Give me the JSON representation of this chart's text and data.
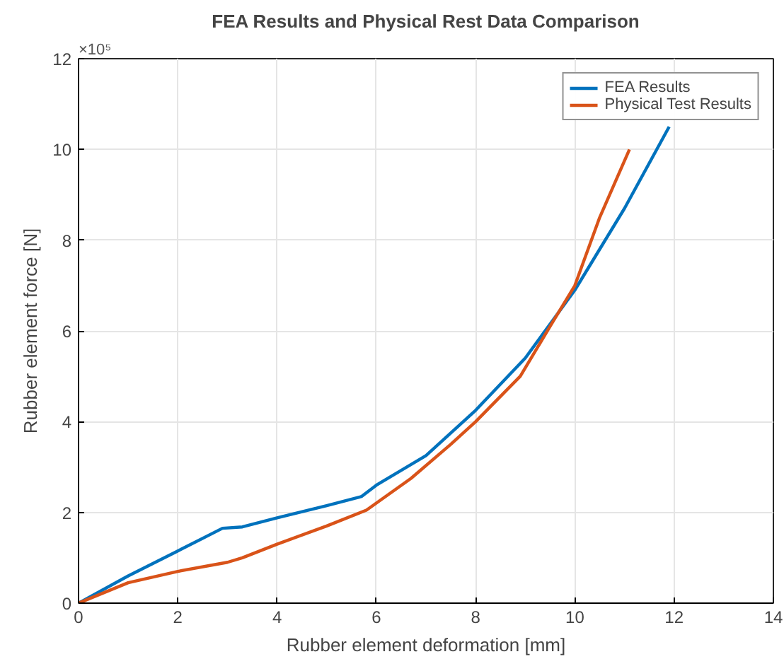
{
  "chart_data": {
    "type": "line",
    "title": "FEA Results and Physical Rest Data Comparison",
    "xlabel": "Rubber element deformation [mm]",
    "ylabel": "Rubber element force [N]",
    "annotations": [
      "×10⁵"
    ],
    "xlim": [
      0,
      14
    ],
    "xticks": [
      0,
      2,
      4,
      6,
      8,
      10,
      12,
      14
    ],
    "ylim": [
      0,
      12
    ],
    "yticks": [
      0,
      2,
      4,
      6,
      8,
      10,
      12
    ],
    "grid": true,
    "legend": "top right",
    "series": [
      {
        "name": "FEA Results",
        "color": "#0072bd",
        "x": [
          0,
          1,
          2,
          2.9,
          3.3,
          4,
          5,
          5.7,
          6,
          7,
          8,
          9,
          10,
          11,
          11.9
        ],
        "values": [
          0,
          0.6,
          1.15,
          1.65,
          1.68,
          1.88,
          2.15,
          2.35,
          2.6,
          3.25,
          4.25,
          5.4,
          6.9,
          8.7,
          10.5
        ]
      },
      {
        "name": "Physical Test Results",
        "color": "#d95319",
        "x": [
          0,
          1,
          2,
          3,
          3.3,
          4,
          5,
          5.8,
          6.7,
          7.5,
          8,
          8.9,
          9.5,
          10,
          10.5,
          11.1
        ],
        "values": [
          0,
          0.45,
          0.7,
          0.9,
          1.0,
          1.3,
          1.7,
          2.05,
          2.75,
          3.5,
          4.0,
          5.0,
          6.1,
          7.0,
          8.5,
          10.0
        ]
      }
    ]
  }
}
